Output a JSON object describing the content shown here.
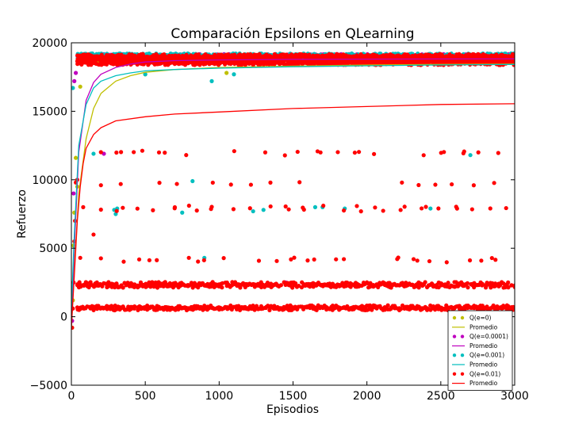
{
  "chart_data": {
    "type": "scatter",
    "title": "Comparación Epsilons en QLearning",
    "xlabel": "Episodios",
    "ylabel": "Refuerzo",
    "xlim": [
      0,
      3000
    ],
    "ylim": [
      -5000,
      20000
    ],
    "xticks": [
      0,
      500,
      1000,
      1500,
      2000,
      2500,
      3000
    ],
    "yticks": [
      -5000,
      0,
      5000,
      10000,
      15000,
      20000
    ],
    "grid": false,
    "legend_position": "lower-right",
    "series": [
      {
        "name": "Q(e=0)",
        "kind": "points",
        "color": "#bfbf00",
        "bands": [
          18900,
          18700
        ],
        "outliers": [
          [
            5,
            -800
          ],
          [
            10,
            1200
          ],
          [
            15,
            5200
          ],
          [
            20,
            7600
          ],
          [
            30,
            11600
          ],
          [
            40,
            9500
          ],
          [
            60,
            16800
          ],
          [
            500,
            17700
          ],
          [
            1050,
            17800
          ]
        ]
      },
      {
        "name": "Promedio",
        "kind": "line",
        "color": "#bfbf00",
        "points": [
          [
            0,
            -800
          ],
          [
            20,
            3500
          ],
          [
            50,
            9000
          ],
          [
            100,
            13000
          ],
          [
            150,
            15200
          ],
          [
            200,
            16300
          ],
          [
            300,
            17200
          ],
          [
            400,
            17600
          ],
          [
            500,
            17850
          ],
          [
            700,
            18050
          ],
          [
            1000,
            18200
          ],
          [
            1500,
            18300
          ],
          [
            2000,
            18380
          ],
          [
            2500,
            18420
          ],
          [
            3000,
            18450
          ]
        ]
      },
      {
        "name": "Q(e=0.0001)",
        "kind": "points",
        "color": "#bf00bf",
        "bands": [
          19050,
          18950
        ],
        "outliers": [
          [
            5,
            -300
          ],
          [
            15,
            9000
          ],
          [
            20,
            17200
          ],
          [
            30,
            17800
          ],
          [
            220,
            11900
          ],
          [
            1450,
            2500
          ]
        ]
      },
      {
        "name": "Promedio",
        "kind": "line",
        "color": "#bf00bf",
        "points": [
          [
            0,
            -300
          ],
          [
            20,
            5000
          ],
          [
            50,
            12000
          ],
          [
            100,
            15800
          ],
          [
            150,
            17100
          ],
          [
            200,
            17700
          ],
          [
            300,
            18200
          ],
          [
            400,
            18450
          ],
          [
            500,
            18600
          ],
          [
            700,
            18700
          ],
          [
            1000,
            18750
          ],
          [
            1500,
            18790
          ],
          [
            2000,
            18810
          ],
          [
            2500,
            18820
          ],
          [
            3000,
            18830
          ]
        ]
      },
      {
        "name": "Q(e=0.001)",
        "kind": "points",
        "color": "#00bfbf",
        "bands": [
          19100,
          19000
        ],
        "outliers": [
          [
            10,
            16700
          ],
          [
            150,
            11900
          ],
          [
            290,
            7800
          ],
          [
            300,
            7500
          ],
          [
            310,
            7900
          ],
          [
            500,
            17700
          ],
          [
            750,
            7600
          ],
          [
            820,
            9900
          ],
          [
            900,
            4300
          ],
          [
            950,
            17200
          ],
          [
            1100,
            17700
          ],
          [
            1230,
            7700
          ],
          [
            1300,
            7800
          ],
          [
            1650,
            8000
          ],
          [
            1700,
            8000
          ],
          [
            1850,
            7900
          ],
          [
            2430,
            7900
          ],
          [
            2700,
            11800
          ]
        ]
      },
      {
        "name": "Promedio",
        "kind": "line",
        "color": "#00bfbf",
        "points": [
          [
            0,
            500
          ],
          [
            20,
            6000
          ],
          [
            50,
            12500
          ],
          [
            100,
            15500
          ],
          [
            150,
            16700
          ],
          [
            200,
            17200
          ],
          [
            300,
            17600
          ],
          [
            400,
            17800
          ],
          [
            500,
            17950
          ],
          [
            700,
            18050
          ],
          [
            1000,
            18150
          ],
          [
            1500,
            18250
          ],
          [
            2000,
            18320
          ],
          [
            2500,
            18380
          ],
          [
            3000,
            18420
          ]
        ]
      },
      {
        "name": "Q(e=0.01)",
        "kind": "points",
        "color": "#ff0000",
        "bands": [
          19050,
          18900,
          18700,
          18500,
          2400,
          2250,
          700,
          600
        ],
        "levels": [
          12000,
          11900,
          9700,
          8000,
          7800,
          4200,
          4100
        ],
        "outliers": [
          [
            5,
            -800
          ],
          [
            10,
            600
          ],
          [
            15,
            2500
          ],
          [
            20,
            5500
          ],
          [
            25,
            7000
          ],
          [
            30,
            9800
          ],
          [
            40,
            10000
          ],
          [
            60,
            4300
          ],
          [
            80,
            8000
          ],
          [
            150,
            6000
          ]
        ]
      },
      {
        "name": "Promedio",
        "kind": "line",
        "color": "#ff0000",
        "points": [
          [
            0,
            -800
          ],
          [
            20,
            3000
          ],
          [
            40,
            7000
          ],
          [
            60,
            9500
          ],
          [
            80,
            11200
          ],
          [
            100,
            12300
          ],
          [
            150,
            13300
          ],
          [
            200,
            13800
          ],
          [
            300,
            14300
          ],
          [
            500,
            14600
          ],
          [
            700,
            14800
          ],
          [
            1000,
            14950
          ],
          [
            1500,
            15200
          ],
          [
            2000,
            15350
          ],
          [
            2500,
            15500
          ],
          [
            3000,
            15550
          ]
        ]
      }
    ]
  }
}
